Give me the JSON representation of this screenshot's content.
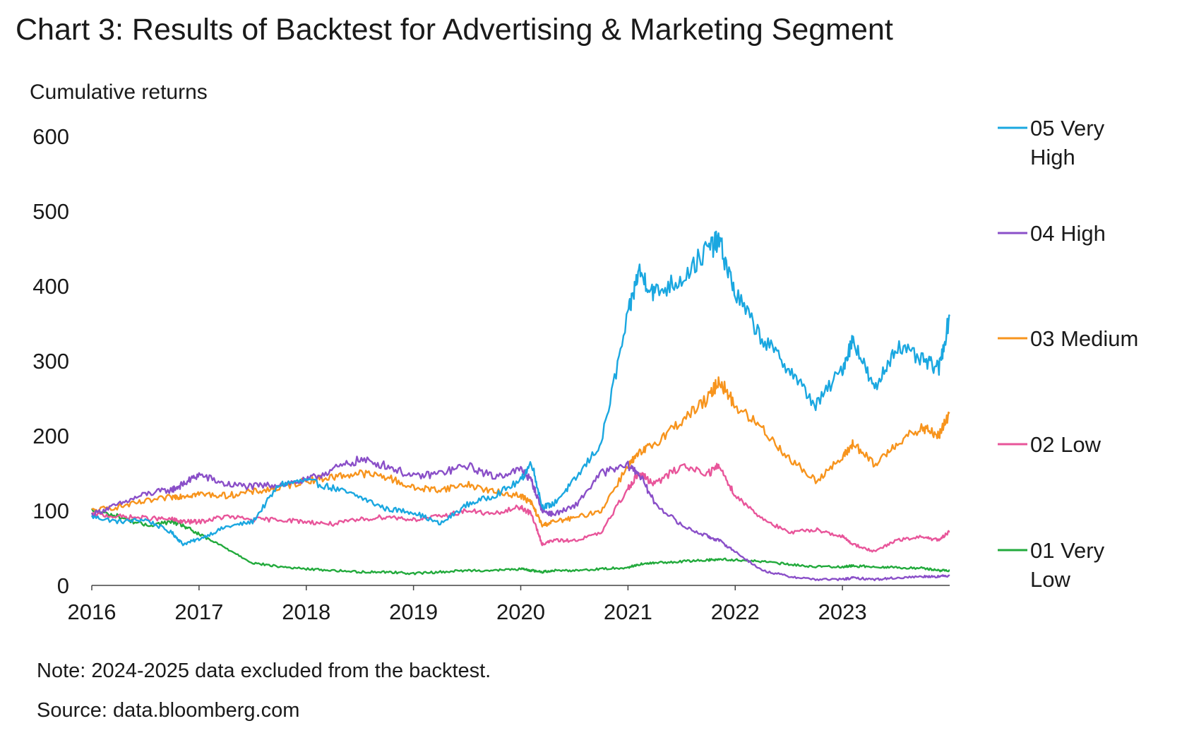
{
  "title": "Chart 3: Results of Backtest for Advertising & Marketing Segment",
  "note": "Note: 2024-2025 data excluded from the backtest.",
  "source": "Source: data.bloomberg.com",
  "chart_data": {
    "type": "line",
    "title": "Chart 3: Results of Backtest for Advertising & Marketing Segment",
    "xlabel": "",
    "ylabel": "Cumulative returns",
    "xlim": [
      2016,
      2024
    ],
    "ylim": [
      0,
      600
    ],
    "yticks": [
      0,
      100,
      200,
      300,
      400,
      500,
      600
    ],
    "xticks": [
      2016,
      2017,
      2018,
      2019,
      2020,
      2021,
      2022,
      2023
    ],
    "grid": false,
    "legend_position": "right",
    "x": [
      2016.0,
      2016.25,
      2016.5,
      2016.75,
      2016.85,
      2017.0,
      2017.25,
      2017.5,
      2017.75,
      2018.0,
      2018.25,
      2018.5,
      2018.75,
      2019.0,
      2019.25,
      2019.5,
      2019.75,
      2020.0,
      2020.1,
      2020.2,
      2020.3,
      2020.5,
      2020.75,
      2021.0,
      2021.1,
      2021.25,
      2021.5,
      2021.75,
      2021.85,
      2022.0,
      2022.25,
      2022.5,
      2022.75,
      2023.0,
      2023.1,
      2023.3,
      2023.5,
      2023.75,
      2023.9,
      2024.0
    ],
    "series": [
      {
        "name": "05 Very High",
        "label_lines": [
          "05 Very",
          "High"
        ],
        "color": "#1aa7e0",
        "values": [
          92,
          85,
          88,
          70,
          55,
          62,
          78,
          85,
          135,
          140,
          130,
          118,
          102,
          98,
          82,
          108,
          120,
          140,
          165,
          105,
          108,
          140,
          190,
          360,
          420,
          390,
          410,
          450,
          460,
          390,
          330,
          290,
          240,
          290,
          330,
          260,
          320,
          300,
          290,
          360
        ]
      },
      {
        "name": "04 High",
        "label_lines": [
          "04 High"
        ],
        "color": "#8a4fc8",
        "values": [
          95,
          108,
          122,
          128,
          135,
          148,
          135,
          132,
          135,
          140,
          155,
          168,
          160,
          145,
          150,
          160,
          145,
          155,
          140,
          100,
          95,
          105,
          150,
          160,
          150,
          110,
          80,
          65,
          60,
          45,
          20,
          12,
          8,
          8,
          10,
          8,
          10,
          12,
          12,
          13
        ]
      },
      {
        "name": "03 Medium",
        "label_lines": [
          "03 Medium"
        ],
        "color": "#f7941d",
        "values": [
          100,
          105,
          112,
          118,
          120,
          122,
          120,
          125,
          130,
          140,
          145,
          150,
          145,
          130,
          128,
          135,
          125,
          120,
          110,
          80,
          85,
          90,
          100,
          160,
          175,
          190,
          220,
          250,
          275,
          240,
          210,
          170,
          140,
          170,
          190,
          160,
          190,
          210,
          200,
          230
        ]
      },
      {
        "name": "02 Low",
        "label_lines": [
          "02 Low"
        ],
        "color": "#e8559a",
        "values": [
          95,
          92,
          90,
          88,
          85,
          85,
          92,
          88,
          88,
          85,
          82,
          88,
          92,
          88,
          92,
          100,
          95,
          105,
          95,
          55,
          60,
          60,
          70,
          130,
          150,
          135,
          160,
          150,
          160,
          120,
          90,
          70,
          75,
          65,
          55,
          45,
          60,
          65,
          60,
          72
        ]
      },
      {
        "name": "01 Very Low",
        "label_lines": [
          "01 Very",
          "Low"
        ],
        "color": "#22aa3c",
        "values": [
          100,
          92,
          80,
          85,
          80,
          68,
          50,
          30,
          25,
          22,
          20,
          18,
          18,
          16,
          18,
          20,
          20,
          22,
          20,
          18,
          20,
          20,
          22,
          24,
          28,
          30,
          32,
          34,
          35,
          34,
          32,
          28,
          25,
          25,
          26,
          25,
          24,
          23,
          20,
          20
        ]
      }
    ]
  }
}
